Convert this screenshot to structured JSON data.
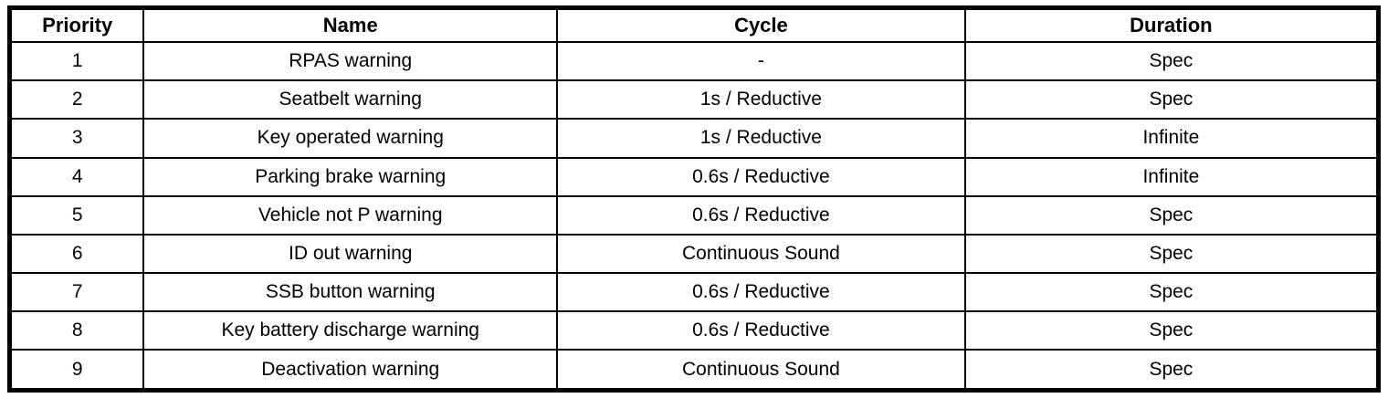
{
  "table": {
    "columns": [
      {
        "key": "priority",
        "label": "Priority"
      },
      {
        "key": "name",
        "label": "Name"
      },
      {
        "key": "cycle",
        "label": "Cycle"
      },
      {
        "key": "duration",
        "label": "Duration"
      }
    ],
    "rows": [
      {
        "priority": "1",
        "name": "RPAS warning",
        "cycle": "-",
        "duration": "Spec"
      },
      {
        "priority": "2",
        "name": "Seatbelt warning",
        "cycle": "1s / Reductive",
        "duration": "Spec"
      },
      {
        "priority": "3",
        "name": "Key operated warning",
        "cycle": "1s / Reductive",
        "duration": "Infinite"
      },
      {
        "priority": "4",
        "name": "Parking brake warning",
        "cycle": "0.6s / Reductive",
        "duration": "Infinite"
      },
      {
        "priority": "5",
        "name": "Vehicle not P warning",
        "cycle": "0.6s / Reductive",
        "duration": "Spec"
      },
      {
        "priority": "6",
        "name": "ID out warning",
        "cycle": "Continuous Sound",
        "duration": "Spec"
      },
      {
        "priority": "7",
        "name": "SSB button warning",
        "cycle": "0.6s / Reductive",
        "duration": "Spec"
      },
      {
        "priority": "8",
        "name": "Key battery discharge warning",
        "cycle": "0.6s / Reductive",
        "duration": "Spec"
      },
      {
        "priority": "9",
        "name": "Deactivation warning",
        "cycle": "Continuous Sound",
        "duration": "Spec"
      }
    ]
  },
  "colors": {
    "border": "#000000",
    "background": "#ffffff",
    "text": "#000000"
  }
}
